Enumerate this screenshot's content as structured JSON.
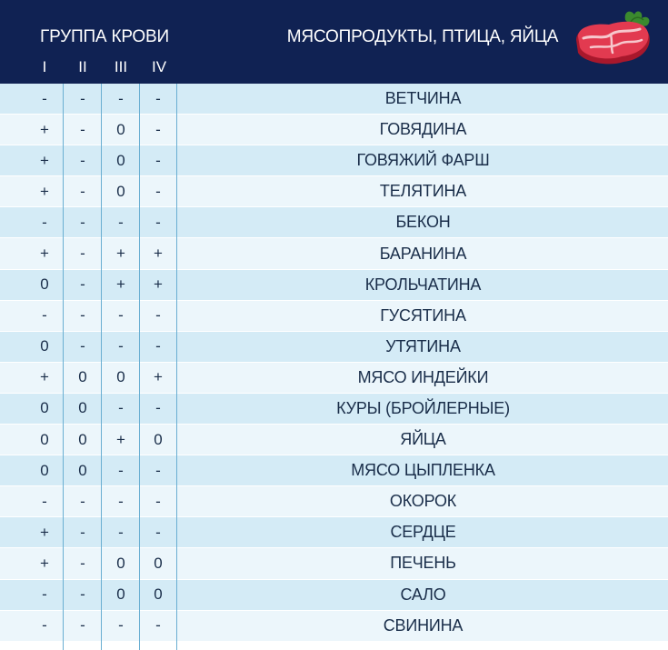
{
  "header": {
    "group_title": "ГРУППА КРОВИ",
    "roman": [
      "I",
      "II",
      "III",
      "IV"
    ],
    "product_title": "МЯСОПРОДУКТЫ, ПТИЦА, ЯЙЦА",
    "icon": "meat-steak-icon"
  },
  "colors": {
    "header_bg": "#102253",
    "row_odd": "#d4ebf6",
    "row_even": "#ecf6fb",
    "separator": "#6aaed2",
    "text": "#1a2e4a"
  },
  "rows": [
    {
      "i": "-",
      "ii": "-",
      "iii": "-",
      "iv": "-",
      "name": "ВЕТЧИНА"
    },
    {
      "i": "+",
      "ii": "-",
      "iii": "0",
      "iv": "-",
      "name": "ГОВЯДИНА"
    },
    {
      "i": "+",
      "ii": "-",
      "iii": "0",
      "iv": "-",
      "name": "ГОВЯЖИЙ ФАРШ"
    },
    {
      "i": "+",
      "ii": "-",
      "iii": "0",
      "iv": "-",
      "name": "ТЕЛЯТИНА"
    },
    {
      "i": "-",
      "ii": "-",
      "iii": "-",
      "iv": "-",
      "name": "БЕКОН"
    },
    {
      "i": "+",
      "ii": "-",
      "iii": "+",
      "iv": "+",
      "name": "БАРАНИНА"
    },
    {
      "i": "0",
      "ii": "-",
      "iii": "+",
      "iv": "+",
      "name": "КРОЛЬЧАТИНА"
    },
    {
      "i": "-",
      "ii": "-",
      "iii": "-",
      "iv": "-",
      "name": "ГУСЯТИНА"
    },
    {
      "i": "0",
      "ii": "-",
      "iii": "-",
      "iv": "-",
      "name": "УТЯТИНА"
    },
    {
      "i": "+",
      "ii": "0",
      "iii": "0",
      "iv": "+",
      "name": "МЯСО ИНДЕЙКИ"
    },
    {
      "i": "0",
      "ii": "0",
      "iii": "-",
      "iv": "-",
      "name": "КУРЫ (БРОЙЛЕРНЫЕ)"
    },
    {
      "i": "0",
      "ii": "0",
      "iii": "+",
      "iv": "0",
      "name": "ЯЙЦА"
    },
    {
      "i": "0",
      "ii": "0",
      "iii": "-",
      "iv": "-",
      "name": "МЯСО ЦЫПЛЕНКА"
    },
    {
      "i": "-",
      "ii": "-",
      "iii": "-",
      "iv": "-",
      "name": "ОКОРОК"
    },
    {
      "i": "+",
      "ii": "-",
      "iii": "-",
      "iv": "-",
      "name": "СЕРДЦЕ"
    },
    {
      "i": "+",
      "ii": "-",
      "iii": "0",
      "iv": "0",
      "name": "ПЕЧЕНЬ"
    },
    {
      "i": "-",
      "ii": "-",
      "iii": "0",
      "iv": "0",
      "name": "САЛО"
    },
    {
      "i": "-",
      "ii": "-",
      "iii": "-",
      "iv": "-",
      "name": "СВИНИНА"
    }
  ]
}
